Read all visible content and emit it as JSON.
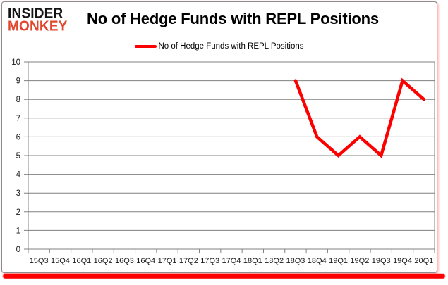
{
  "header": {
    "logo": {
      "line1": "INSIDER",
      "line2": "MONKEY"
    },
    "title": "No of Hedge Funds with REPL Positions"
  },
  "legend": {
    "label": "No of Hedge Funds with REPL Positions",
    "line_color": "#ff0000"
  },
  "chart_data": {
    "type": "line",
    "title": "No of Hedge Funds with REPL Positions",
    "categories": [
      "15Q3",
      "15Q4",
      "16Q1",
      "16Q2",
      "16Q3",
      "16Q4",
      "17Q1",
      "17Q2",
      "17Q3",
      "17Q4",
      "18Q1",
      "18Q2",
      "18Q3",
      "18Q4",
      "19Q1",
      "19Q2",
      "19Q3",
      "19Q4",
      "20Q1"
    ],
    "series": [
      {
        "name": "No of Hedge Funds with REPL Positions",
        "color": "#ff0000",
        "values": [
          null,
          null,
          null,
          null,
          null,
          null,
          null,
          null,
          null,
          null,
          null,
          null,
          9,
          6,
          5,
          6,
          5,
          9,
          8
        ]
      }
    ],
    "xlabel": "",
    "ylabel": "",
    "ylim": [
      0,
      10
    ],
    "yticks": [
      0,
      1,
      2,
      3,
      4,
      5,
      6,
      7,
      8,
      9,
      10
    ],
    "grid": "horizontal-only",
    "legend_position": "top-center"
  },
  "colors": {
    "series_red": "#ff0000",
    "gridline": "#808080",
    "axis_text": "#1a1a1a",
    "title_text": "#000000",
    "logo_black": "#141414",
    "logo_red": "#e2462e",
    "widget_border": "#8c8c8c",
    "bottom_bar_red": "#ff0000",
    "background": "#ffffff"
  }
}
